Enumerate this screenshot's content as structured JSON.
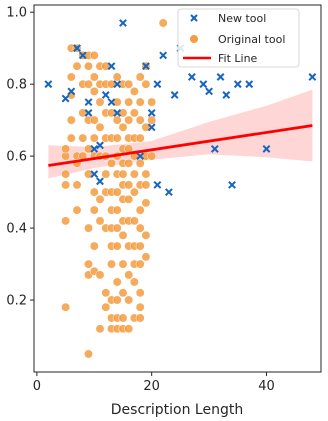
{
  "chart_data": {
    "type": "scatter",
    "title": "",
    "xlabel": "Description Length",
    "ylabel": "",
    "xlim": [
      -0.5,
      49.5
    ],
    "ylim": [
      0.0,
      1.02
    ],
    "x_ticks": [
      0,
      20,
      40
    ],
    "y_ticks": [
      0.2,
      0.4,
      0.6,
      0.8,
      1.0
    ],
    "grid": false,
    "legend_position": "top-right",
    "legend": [
      {
        "label": "New tool",
        "marker": "x",
        "color": "#1565c0"
      },
      {
        "label": "Original tool",
        "marker": "circle",
        "color": "#f59b40"
      },
      {
        "label": "Fit Line",
        "marker": "line",
        "color": "#ff0000"
      }
    ],
    "series": [
      {
        "name": "New tool",
        "marker": "x",
        "color": "#1565c0",
        "points": [
          [
            2,
            0.8
          ],
          [
            5,
            0.76
          ],
          [
            6,
            0.78
          ],
          [
            7,
            0.9
          ],
          [
            8,
            0.88
          ],
          [
            9,
            0.72
          ],
          [
            9,
            0.75
          ],
          [
            10,
            0.62
          ],
          [
            10,
            0.55
          ],
          [
            11,
            0.53
          ],
          [
            11,
            0.63
          ],
          [
            12,
            0.77
          ],
          [
            13,
            0.85
          ],
          [
            13,
            0.75
          ],
          [
            14,
            0.8
          ],
          [
            14,
            0.72
          ],
          [
            15,
            0.97
          ],
          [
            18,
            0.6
          ],
          [
            19,
            0.85
          ],
          [
            20,
            0.72
          ],
          [
            20,
            0.68
          ],
          [
            21,
            0.8
          ],
          [
            21,
            0.52
          ],
          [
            22,
            0.88
          ],
          [
            23,
            0.5
          ],
          [
            24,
            0.77
          ],
          [
            25,
            0.9
          ],
          [
            27,
            0.82
          ],
          [
            29,
            0.8
          ],
          [
            30,
            0.78
          ],
          [
            31,
            0.62
          ],
          [
            32,
            0.82
          ],
          [
            33,
            0.77
          ],
          [
            34,
            0.52
          ],
          [
            35,
            0.8
          ],
          [
            37,
            0.8
          ],
          [
            40,
            0.62
          ],
          [
            48,
            0.82
          ]
        ]
      },
      {
        "name": "Original tool",
        "marker": "circle",
        "color": "#f59b40",
        "points": [
          [
            5,
            0.52
          ],
          [
            5,
            0.6
          ],
          [
            5,
            0.55
          ],
          [
            5,
            0.42
          ],
          [
            5,
            0.18
          ],
          [
            5,
            0.62
          ],
          [
            6,
            0.9
          ],
          [
            6,
            0.82
          ],
          [
            6,
            0.77
          ],
          [
            6,
            0.7
          ],
          [
            6,
            0.65
          ],
          [
            7,
            0.85
          ],
          [
            7,
            0.9
          ],
          [
            7,
            0.6
          ],
          [
            7,
            0.58
          ],
          [
            7,
            0.52
          ],
          [
            7,
            0.45
          ],
          [
            8,
            0.88
          ],
          [
            8,
            0.8
          ],
          [
            8,
            0.72
          ],
          [
            8,
            0.65
          ],
          [
            8,
            0.6
          ],
          [
            9,
            0.88
          ],
          [
            9,
            0.85
          ],
          [
            9,
            0.8
          ],
          [
            9,
            0.7
          ],
          [
            9,
            0.62
          ],
          [
            9,
            0.55
          ],
          [
            9,
            0.4
          ],
          [
            9,
            0.3
          ],
          [
            9,
            0.27
          ],
          [
            9,
            0.05
          ],
          [
            10,
            0.88
          ],
          [
            10,
            0.82
          ],
          [
            10,
            0.78
          ],
          [
            10,
            0.7
          ],
          [
            10,
            0.65
          ],
          [
            10,
            0.6
          ],
          [
            10,
            0.5
          ],
          [
            10,
            0.45
          ],
          [
            10,
            0.35
          ],
          [
            10,
            0.28
          ],
          [
            11,
            0.85
          ],
          [
            11,
            0.8
          ],
          [
            11,
            0.75
          ],
          [
            11,
            0.68
          ],
          [
            11,
            0.6
          ],
          [
            11,
            0.48
          ],
          [
            11,
            0.42
          ],
          [
            11,
            0.27
          ],
          [
            11,
            0.12
          ],
          [
            12,
            0.85
          ],
          [
            12,
            0.8
          ],
          [
            12,
            0.72
          ],
          [
            12,
            0.65
          ],
          [
            12,
            0.6
          ],
          [
            12,
            0.55
          ],
          [
            12,
            0.5
          ],
          [
            12,
            0.4
          ],
          [
            12,
            0.22
          ],
          [
            12,
            0.18
          ],
          [
            13,
            0.8
          ],
          [
            13,
            0.72
          ],
          [
            13,
            0.65
          ],
          [
            13,
            0.58
          ],
          [
            13,
            0.5
          ],
          [
            13,
            0.45
          ],
          [
            13,
            0.4
          ],
          [
            13,
            0.35
          ],
          [
            13,
            0.3
          ],
          [
            13,
            0.2
          ],
          [
            13,
            0.15
          ],
          [
            13,
            0.12
          ],
          [
            14,
            0.82
          ],
          [
            14,
            0.75
          ],
          [
            14,
            0.7
          ],
          [
            14,
            0.65
          ],
          [
            14,
            0.6
          ],
          [
            14,
            0.55
          ],
          [
            14,
            0.5
          ],
          [
            14,
            0.45
          ],
          [
            14,
            0.4
          ],
          [
            14,
            0.35
          ],
          [
            14,
            0.25
          ],
          [
            14,
            0.2
          ],
          [
            14,
            0.15
          ],
          [
            14,
            0.12
          ],
          [
            15,
            0.8
          ],
          [
            15,
            0.72
          ],
          [
            15,
            0.68
          ],
          [
            15,
            0.62
          ],
          [
            15,
            0.58
          ],
          [
            15,
            0.55
          ],
          [
            15,
            0.52
          ],
          [
            15,
            0.48
          ],
          [
            15,
            0.42
          ],
          [
            15,
            0.38
          ],
          [
            15,
            0.3
          ],
          [
            15,
            0.22
          ],
          [
            15,
            0.15
          ],
          [
            15,
            0.12
          ],
          [
            16,
            0.8
          ],
          [
            16,
            0.75
          ],
          [
            16,
            0.7
          ],
          [
            16,
            0.65
          ],
          [
            16,
            0.62
          ],
          [
            16,
            0.58
          ],
          [
            16,
            0.52
          ],
          [
            16,
            0.48
          ],
          [
            16,
            0.42
          ],
          [
            16,
            0.35
          ],
          [
            16,
            0.27
          ],
          [
            16,
            0.2
          ],
          [
            16,
            0.12
          ],
          [
            17,
            0.78
          ],
          [
            17,
            0.72
          ],
          [
            17,
            0.65
          ],
          [
            17,
            0.6
          ],
          [
            17,
            0.55
          ],
          [
            17,
            0.5
          ],
          [
            17,
            0.42
          ],
          [
            17,
            0.35
          ],
          [
            17,
            0.3
          ],
          [
            17,
            0.25
          ],
          [
            17,
            0.15
          ],
          [
            18,
            0.82
          ],
          [
            18,
            0.75
          ],
          [
            18,
            0.7
          ],
          [
            18,
            0.65
          ],
          [
            18,
            0.58
          ],
          [
            18,
            0.52
          ],
          [
            18,
            0.45
          ],
          [
            18,
            0.4
          ],
          [
            18,
            0.35
          ],
          [
            18,
            0.3
          ],
          [
            18,
            0.22
          ],
          [
            18,
            0.18
          ],
          [
            18,
            0.15
          ],
          [
            19,
            0.85
          ],
          [
            19,
            0.8
          ],
          [
            19,
            0.68
          ],
          [
            19,
            0.6
          ],
          [
            19,
            0.55
          ],
          [
            19,
            0.52
          ],
          [
            19,
            0.47
          ],
          [
            19,
            0.38
          ],
          [
            19,
            0.32
          ],
          [
            20,
            0.75
          ],
          [
            20,
            0.7
          ],
          [
            20,
            0.6
          ],
          [
            22,
            0.97
          ]
        ]
      },
      {
        "name": "Fit Line",
        "marker": "line",
        "color": "#ff0000",
        "line": [
          [
            2,
            0.574
          ],
          [
            48,
            0.685
          ]
        ],
        "ci_upper": [
          [
            2,
            0.63
          ],
          [
            10,
            0.625
          ],
          [
            20,
            0.642
          ],
          [
            30,
            0.695
          ],
          [
            40,
            0.74
          ],
          [
            48,
            0.785
          ]
        ],
        "ci_lower": [
          [
            2,
            0.538
          ],
          [
            10,
            0.567
          ],
          [
            20,
            0.59
          ],
          [
            30,
            0.605
          ],
          [
            40,
            0.597
          ],
          [
            48,
            0.585
          ]
        ]
      }
    ]
  }
}
